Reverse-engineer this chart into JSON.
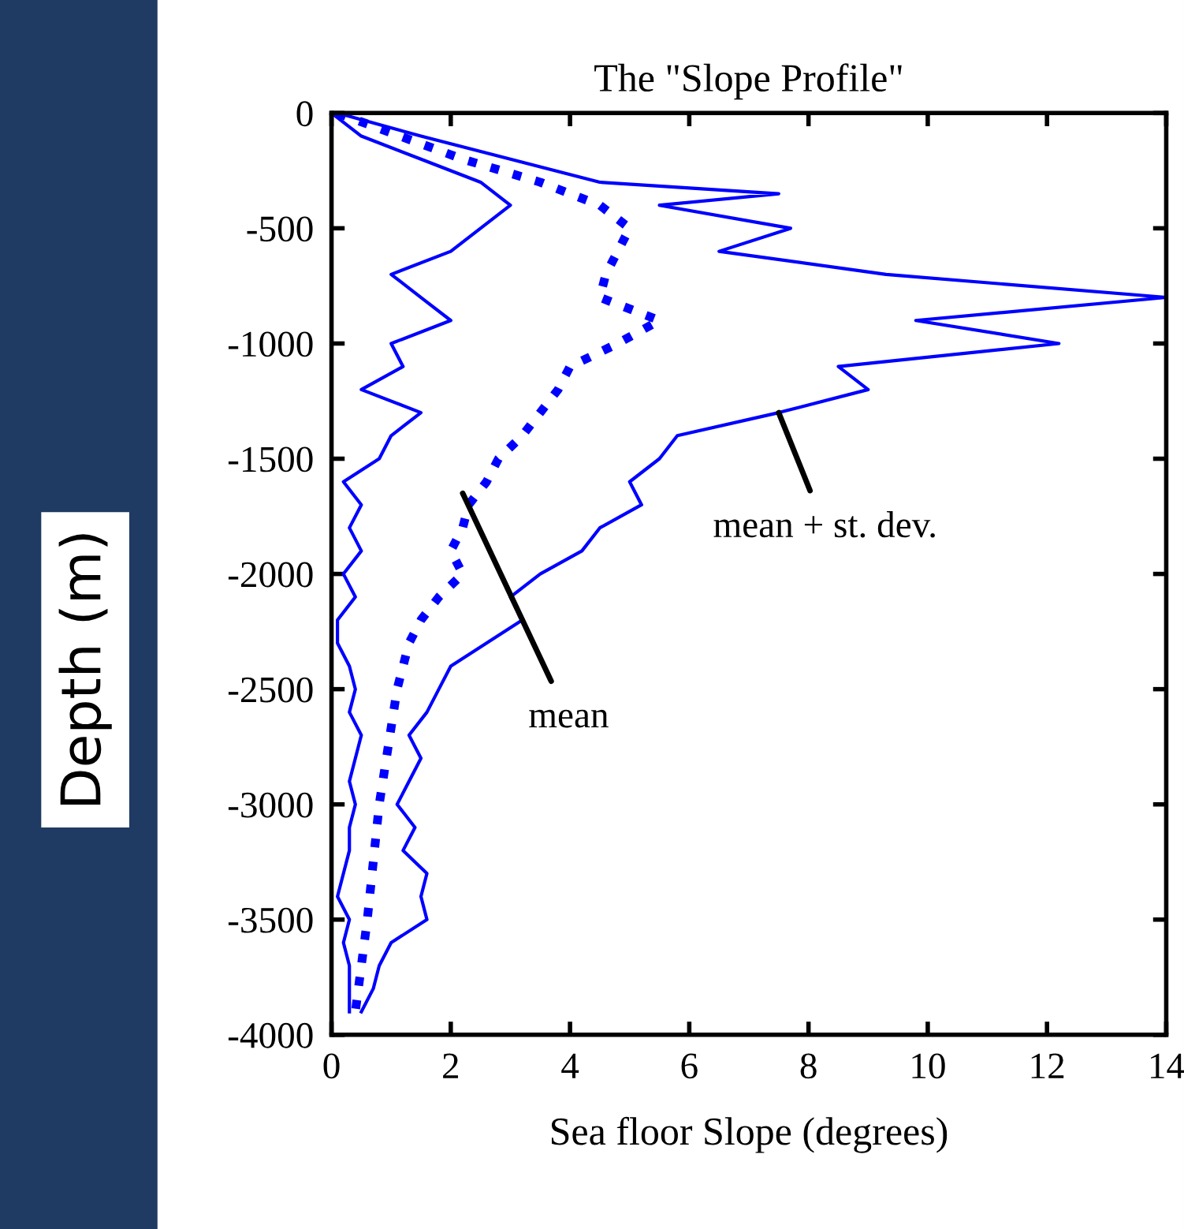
{
  "chart_data": {
    "type": "line",
    "title": "The \"Slope Profile\"",
    "xlabel": "Sea floor Slope (degrees)",
    "ylabel": "Depth (m)",
    "xlim": [
      0,
      14
    ],
    "xticks": [
      0,
      2,
      4,
      6,
      8,
      10,
      12,
      14
    ],
    "ylim": [
      -4000,
      0
    ],
    "yticks": [
      0,
      -500,
      -1000,
      -1500,
      -2000,
      -2500,
      -3000,
      -3500,
      -4000
    ],
    "grid": false,
    "legend": false,
    "series": [
      {
        "color": "#0000ff",
        "line_style": "solid",
        "x": [
          0,
          0.5,
          1.5,
          2.5,
          3,
          2.5,
          2,
          1,
          1.5,
          2,
          1,
          1.2,
          0.5,
          1.5,
          1,
          0.8,
          0.2,
          0.5,
          0.3,
          0.5,
          0.2,
          0.4,
          0.1,
          0.1,
          0.3,
          0.4,
          0.3,
          0.5,
          0.4,
          0.3,
          0.4,
          0.3,
          0.3,
          0.2,
          0.1,
          0.3,
          0.2,
          0.3,
          0.3,
          0.3
        ],
        "values": [
          0,
          -100,
          -200,
          -300,
          -400,
          -500,
          -600,
          -700,
          -800,
          -900,
          -1000,
          -1100,
          -1200,
          -1300,
          -1400,
          -1500,
          -1600,
          -1700,
          -1800,
          -1900,
          -2000,
          -2100,
          -2200,
          -2300,
          -2400,
          -2500,
          -2600,
          -2700,
          -2800,
          -2900,
          -3000,
          -3100,
          -3200,
          -3300,
          -3400,
          -3500,
          -3600,
          -3700,
          -3800,
          -3900
        ]
      },
      {
        "color": "#0000ff",
        "line_style": "dotted",
        "x": [
          0.1,
          2.2,
          3.5,
          4.5,
          5,
          4.8,
          4.6,
          4.5,
          5.5,
          4.8,
          4,
          3.8,
          3.5,
          3.2,
          2.8,
          2.6,
          2.3,
          2.2,
          2,
          2.2,
          1.8,
          1.5,
          1.3,
          1.1,
          0.8,
          0.6,
          0.4
        ],
        "values": [
          0,
          -200,
          -300,
          -400,
          -500,
          -600,
          -700,
          -800,
          -900,
          -1000,
          -1100,
          -1200,
          -1300,
          -1400,
          -1500,
          -1600,
          -1700,
          -1800,
          -1900,
          -2000,
          -2100,
          -2200,
          -2300,
          -2500,
          -3000,
          -3500,
          -3900
        ]
      },
      {
        "color": "#0000ff",
        "line_style": "solid",
        "x": [
          0.1,
          1.5,
          3,
          4.5,
          7.5,
          5.5,
          7.7,
          6.5,
          9.3,
          14,
          9.8,
          12.2,
          8.5,
          9,
          7.5,
          5.8,
          5.5,
          5,
          5.2,
          4.5,
          4.2,
          3.5,
          3,
          3.2,
          2.6,
          2,
          1.8,
          1.6,
          1.3,
          1.5,
          1.3,
          1.1,
          1.4,
          1.2,
          1.6,
          1.5,
          1.6,
          1,
          0.8,
          0.7,
          0.5
        ],
        "values": [
          0,
          -100,
          -200,
          -300,
          -350,
          -400,
          -500,
          -600,
          -700,
          -800,
          -900,
          -1000,
          -1100,
          -1200,
          -1300,
          -1400,
          -1500,
          -1600,
          -1700,
          -1800,
          -1900,
          -2000,
          -2100,
          -2200,
          -2300,
          -2400,
          -2500,
          -2600,
          -2700,
          -2800,
          -2900,
          -3000,
          -3100,
          -3200,
          -3300,
          -3400,
          -3500,
          -3600,
          -3700,
          -3800,
          -3900
        ]
      }
    ],
    "annotations": [
      {
        "text": "mean + st. dev.",
        "x": 7.5,
        "y": -1300
      },
      {
        "text": "mean",
        "x": 2.2,
        "y": -1650
      }
    ]
  }
}
